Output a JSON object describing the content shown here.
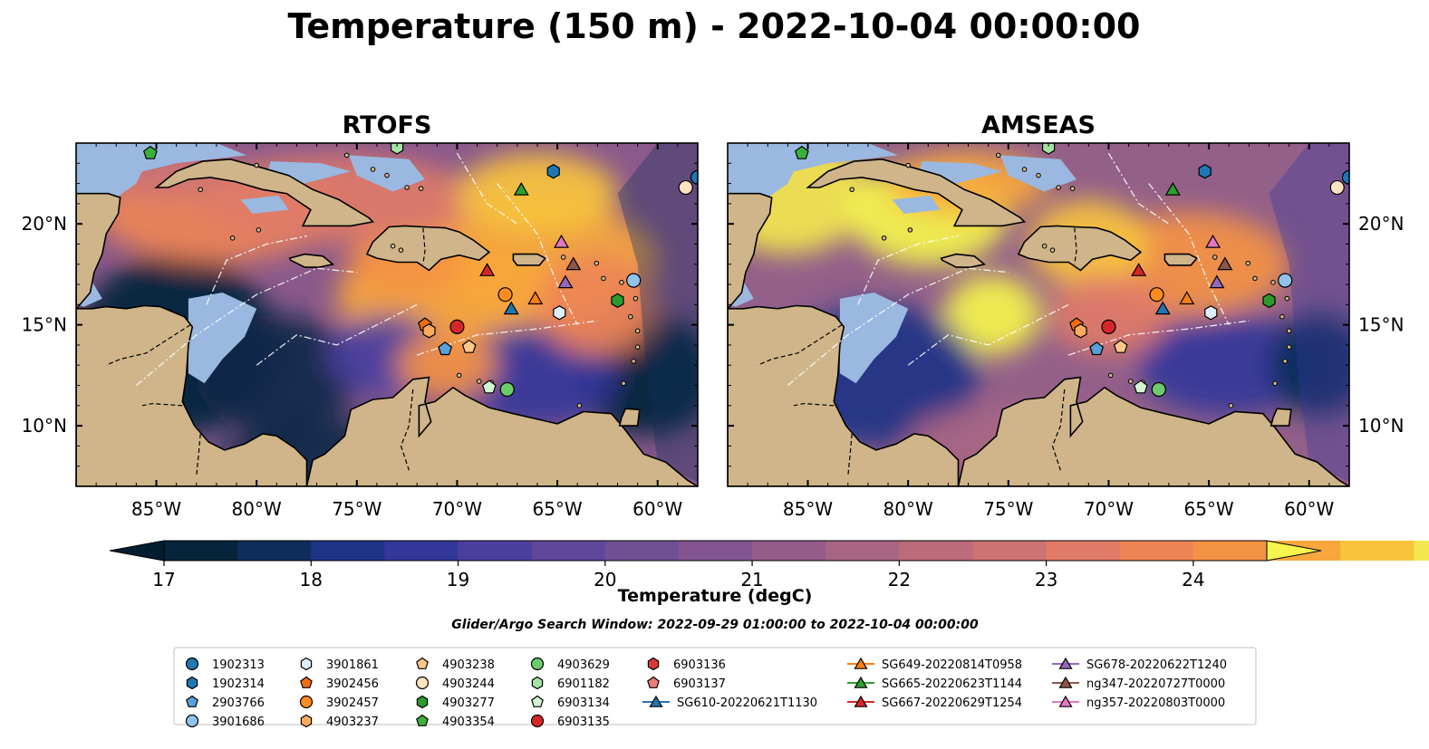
{
  "figure": {
    "title": "Temperature (150 m) - 2022-10-04 00:00:00",
    "search_window": "Glider/Argo Search Window: 2022-09-29 01:00:00 to 2022-10-04 00:00:00"
  },
  "colors": {
    "land": "#cfb589",
    "shallow_water": "#9ab8e0",
    "coast": "#000000"
  },
  "chart_data": {
    "type": "heatmap",
    "panels": [
      {
        "title": "RTOFS"
      },
      {
        "title": "AMSEAS"
      }
    ],
    "xlim": [
      -89,
      -58
    ],
    "ylim": [
      7,
      24
    ],
    "x_ticks": [
      -85,
      -80,
      -75,
      -70,
      -65,
      -60
    ],
    "x_tick_labels": [
      "85°W",
      "80°W",
      "75°W",
      "70°W",
      "65°W",
      "60°W"
    ],
    "y_ticks": [
      10,
      15,
      20
    ],
    "y_tick_labels": [
      "10°N",
      "15°N",
      "20°N"
    ],
    "colorbar": {
      "label": "Temperature (degC)",
      "min": 17,
      "max": 24.5,
      "step": 0.5,
      "ticks": [
        17,
        18,
        19,
        20,
        21,
        22,
        23,
        24
      ],
      "tick_labels": [
        "17",
        "18",
        "19",
        "20",
        "21",
        "22",
        "23",
        "24"
      ],
      "extend": "both",
      "colors": [
        "#06243a",
        "#0f2d5a",
        "#1f3486",
        "#33379a",
        "#4b3f9e",
        "#5e479a",
        "#704f95",
        "#825590",
        "#955c8a",
        "#a86583",
        "#bb6b7c",
        "#cd7374",
        "#e07b68",
        "#ee8456",
        "#f49244",
        "#f7a73c",
        "#f8c43c",
        "#f2e74f"
      ],
      "under_color": "#031d30",
      "over_color": "#f5f54d"
    },
    "legend": {
      "placement": "bottom-center",
      "entries": [
        {
          "label": "1902313",
          "marker": "circle",
          "color": "#1f77b4"
        },
        {
          "label": "1902314",
          "marker": "hexagon",
          "color": "#1f77b4"
        },
        {
          "label": "2903766",
          "marker": "pentagon",
          "color": "#5aa0d8"
        },
        {
          "label": "3901686",
          "marker": "circle",
          "color": "#8fc3ea"
        },
        {
          "label": "3901861",
          "marker": "hexagon",
          "color": "#deeefa"
        },
        {
          "label": "3902456",
          "marker": "pentagon",
          "color": "#f06d0f"
        },
        {
          "label": "3902457",
          "marker": "circle",
          "color": "#ff8c1f"
        },
        {
          "label": "4903237",
          "marker": "hexagon",
          "color": "#ffaa5c"
        },
        {
          "label": "4903238",
          "marker": "pentagon",
          "color": "#ffc88a"
        },
        {
          "label": "4903244",
          "marker": "circle",
          "color": "#ffe2c0"
        },
        {
          "label": "4903277",
          "marker": "hexagon",
          "color": "#2a9a2a"
        },
        {
          "label": "4903354",
          "marker": "pentagon",
          "color": "#3cb03c"
        },
        {
          "label": "4903629",
          "marker": "circle",
          "color": "#6ccb6c"
        },
        {
          "label": "6901182",
          "marker": "hexagon",
          "color": "#a5e3a5"
        },
        {
          "label": "6903134",
          "marker": "pentagon",
          "color": "#d2f5d2"
        },
        {
          "label": "6903135",
          "marker": "circle",
          "color": "#d62728"
        },
        {
          "label": "6903136",
          "marker": "hexagon",
          "color": "#d63a3a"
        },
        {
          "label": "6903137",
          "marker": "pentagon",
          "color": "#ec7a7a"
        },
        {
          "label": "SG610-20220621T1130",
          "marker": "triangle",
          "color": "#1f77b4",
          "line": true
        },
        {
          "label": "SG649-20220814T0958",
          "marker": "triangle",
          "color": "#ff7f0e",
          "line": true
        },
        {
          "label": "SG665-20220623T1144",
          "marker": "triangle",
          "color": "#2ca02c",
          "line": true
        },
        {
          "label": "SG667-20220629T1254",
          "marker": "triangle",
          "color": "#d62728",
          "line": true
        },
        {
          "label": "SG678-20220622T1240",
          "marker": "triangle",
          "color": "#9467bd",
          "line": true
        },
        {
          "label": "ng347-20220727T0000",
          "marker": "triangle",
          "color": "#8c564b",
          "line": true
        },
        {
          "label": "ng357-20220803T0000",
          "marker": "triangle",
          "color": "#e377c2",
          "line": true
        }
      ]
    },
    "points": [
      {
        "id": "1902313",
        "lon": -58.0,
        "lat": 22.3
      },
      {
        "id": "1902314",
        "lon": -65.2,
        "lat": 22.6
      },
      {
        "id": "2903766",
        "lon": -70.6,
        "lat": 13.8
      },
      {
        "id": "3901686",
        "lon": -61.2,
        "lat": 17.2
      },
      {
        "id": "3901861",
        "lon": -64.9,
        "lat": 15.6
      },
      {
        "id": "3902456",
        "lon": -71.6,
        "lat": 15.0
      },
      {
        "id": "3902457",
        "lon": -67.6,
        "lat": 16.5
      },
      {
        "id": "4903237",
        "lon": -71.4,
        "lat": 14.7
      },
      {
        "id": "4903238",
        "lon": -69.4,
        "lat": 13.9
      },
      {
        "id": "4903244",
        "lon": -58.6,
        "lat": 21.8
      },
      {
        "id": "4903277",
        "lon": -62.0,
        "lat": 16.2
      },
      {
        "id": "4903354",
        "lon": -85.3,
        "lat": 23.5
      },
      {
        "id": "4903629",
        "lon": -67.5,
        "lat": 11.8
      },
      {
        "id": "6901182",
        "lon": -73.0,
        "lat": 23.8
      },
      {
        "id": "6903134",
        "lon": -68.4,
        "lat": 11.9
      },
      {
        "id": "6903135",
        "lon": -70.0,
        "lat": 14.9
      },
      {
        "id": "SG610-20220621T1130",
        "lon": -67.3,
        "lat": 15.8
      },
      {
        "id": "SG649-20220814T0958",
        "lon": -66.1,
        "lat": 16.3
      },
      {
        "id": "SG665-20220623T1144",
        "lon": -66.8,
        "lat": 21.7
      },
      {
        "id": "SG667-20220629T1254",
        "lon": -68.5,
        "lat": 17.7
      },
      {
        "id": "SG678-20220622T1240",
        "lon": -64.6,
        "lat": 17.1
      },
      {
        "id": "ng347-20220727T0000",
        "lon": -64.2,
        "lat": 18.0
      },
      {
        "id": "ng357-20220803T0000",
        "lon": -64.8,
        "lat": 19.1
      }
    ]
  }
}
